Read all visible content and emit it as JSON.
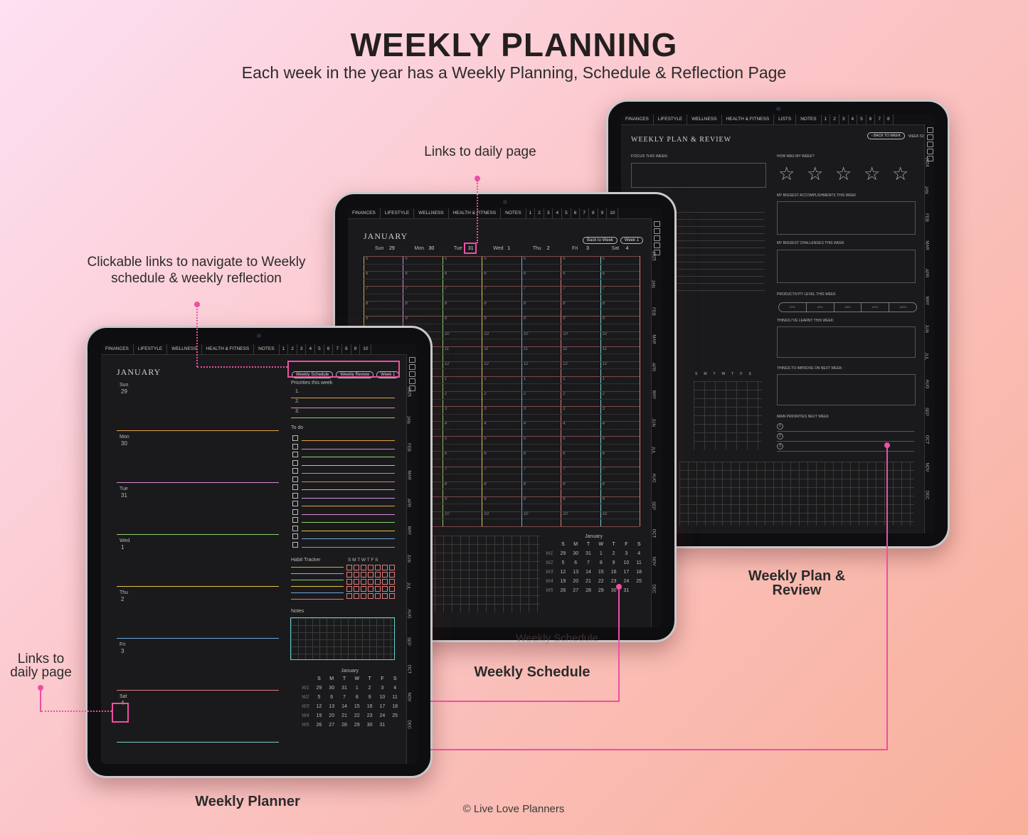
{
  "header": {
    "title": "WEEKLY PLANNING",
    "subtitle": "Each week in the year has a Weekly Planning, Schedule & Reflection Page"
  },
  "annotations": {
    "links_daily_top": "Links to daily page",
    "clickable_line1": "Clickable links to navigate to Weekly",
    "clickable_line2": "schedule & weekly reflection",
    "links_daily_left_line1": "Links to",
    "links_daily_left_line2": "daily page"
  },
  "captions": {
    "weekly_plan_review_line1": "Weekly Plan &",
    "weekly_plan_review_line2": "Review",
    "weekly_schedule": "Weekly Schedule",
    "weekly_schedule_ghost": "Weekly Schedule",
    "weekly_planner": "Weekly Planner",
    "copyright": "© Live Love Planners"
  },
  "colors": {
    "accent": "#ee4fa3"
  },
  "planner": {
    "tabs": [
      "FINANCES",
      "LIFESTYLE",
      "WELLNESS",
      "HEALTH & FITNESS",
      "NOTES",
      "1",
      "2",
      "3",
      "4",
      "5",
      "6",
      "7",
      "8",
      "9",
      "10"
    ],
    "month": "JANUARY",
    "buttons": [
      "Weekly Schedule",
      "Weekly Review",
      "Week 1"
    ],
    "days": [
      {
        "name": "Sun",
        "num": "29"
      },
      {
        "name": "Mon",
        "num": "30"
      },
      {
        "name": "Tue",
        "num": "31"
      },
      {
        "name": "Wed",
        "num": "1"
      },
      {
        "name": "Thu",
        "num": "2"
      },
      {
        "name": "Fri",
        "num": "3"
      },
      {
        "name": "Sat",
        "num": "4"
      }
    ],
    "priorities_label": "Priorities this week",
    "priorities": [
      "1.",
      "2.",
      "3."
    ],
    "todo_label": "To do",
    "habit_label": "Habit Tracker",
    "habit_days": "S M T W T F S",
    "notes_label": "Notes",
    "side": [
      "2025",
      "JAN",
      "FEB",
      "MAR",
      "APR",
      "MAY",
      "JUN",
      "JUL",
      "AUG",
      "SEP",
      "OCT",
      "NOV",
      "DEC"
    ],
    "calendar": {
      "title": "January",
      "head": [
        "S",
        "M",
        "T",
        "W",
        "T",
        "F",
        "S"
      ],
      "rows": [
        [
          "W1",
          "29",
          "30",
          "31",
          "1",
          "2",
          "3",
          "4"
        ],
        [
          "W2",
          "5",
          "6",
          "7",
          "8",
          "9",
          "10",
          "11"
        ],
        [
          "W3",
          "12",
          "13",
          "14",
          "15",
          "16",
          "17",
          "18"
        ],
        [
          "W4",
          "19",
          "20",
          "21",
          "22",
          "23",
          "24",
          "25"
        ],
        [
          "W5",
          "26",
          "27",
          "28",
          "29",
          "30",
          "31",
          ""
        ]
      ]
    }
  },
  "schedule": {
    "tabs": [
      "FINANCES",
      "LIFESTYLE",
      "WELLNESS",
      "HEALTH & FITNESS",
      "NOTES",
      "1",
      "2",
      "3",
      "4",
      "5",
      "6",
      "7",
      "8",
      "9",
      "10"
    ],
    "month": "JANUARY",
    "buttons": [
      "Back to Week",
      "Week 1"
    ],
    "days": [
      {
        "name": "Sun",
        "num": "29"
      },
      {
        "name": "Mon",
        "num": "30"
      },
      {
        "name": "Tue",
        "num": "31"
      },
      {
        "name": "Wed",
        "num": "1"
      },
      {
        "name": "Thu",
        "num": "2"
      },
      {
        "name": "Fri",
        "num": "3"
      },
      {
        "name": "Sat",
        "num": "4"
      }
    ],
    "hours": [
      "5",
      "6",
      "7",
      "8",
      "9",
      "10",
      "11",
      "12",
      "1",
      "2",
      "3",
      "4",
      "5",
      "6",
      "7",
      "8",
      "9",
      "10"
    ],
    "side": [
      "2025",
      "JAN",
      "FEB",
      "MAR",
      "APR",
      "MAY",
      "JUN",
      "JUL",
      "AUG",
      "SEP",
      "OCT",
      "NOV",
      "DEC"
    ],
    "calendar": {
      "title": "January",
      "head": [
        "S",
        "M",
        "T",
        "W",
        "T",
        "F",
        "S"
      ],
      "rows": [
        [
          "W1",
          "29",
          "30",
          "31",
          "1",
          "2",
          "3",
          "4"
        ],
        [
          "W2",
          "5",
          "6",
          "7",
          "8",
          "9",
          "10",
          "11"
        ],
        [
          "W3",
          "12",
          "13",
          "14",
          "15",
          "16",
          "17",
          "18"
        ],
        [
          "W4",
          "19",
          "20",
          "21",
          "22",
          "23",
          "24",
          "25"
        ],
        [
          "W5",
          "26",
          "27",
          "28",
          "29",
          "30",
          "31",
          ""
        ]
      ]
    }
  },
  "review": {
    "tabs": [
      "FINANCES",
      "LIFESTYLE",
      "WELLNESS",
      "HEALTH & FITNESS",
      "LISTS",
      "NOTES",
      "1",
      "2",
      "3",
      "4",
      "5",
      "6",
      "7",
      "8"
    ],
    "title": "WEEKLY PLAN & REVIEW",
    "back_button": "BACK TO WEEK",
    "week_label": "WEEK 52",
    "focus": "FOCUS THIS WEEK:",
    "how": "HOW WAS MY WEEK?",
    "accomplishments": "MY BIGGEST ACCOMPLISHMENTS THIS WEEK",
    "challenges": "MY BIGGEST CHALLENGES THIS WEEK",
    "productivity": "PRODUCTIVITY LEVEL THIS WEEK",
    "levels": [
      "20%",
      "40%",
      "60%",
      "80%",
      "100%"
    ],
    "learnt": "THINGS I'VE LEARNT THIS WEEK:",
    "improve": "THINGS TO IMPROVE ON NEXT WEEK:",
    "priorities": "MAIN PRIORITIES NEXT WEEK",
    "prio_nums": [
      "1",
      "2",
      "3"
    ],
    "habit_days": [
      "S",
      "M",
      "T",
      "W",
      "T",
      "F",
      "S"
    ],
    "side": [
      "2024",
      "JAN",
      "FEB",
      "MAR",
      "APR",
      "MAY",
      "JUN",
      "JUL",
      "AUG",
      "SEP",
      "OCT",
      "NOV",
      "DEC"
    ]
  }
}
